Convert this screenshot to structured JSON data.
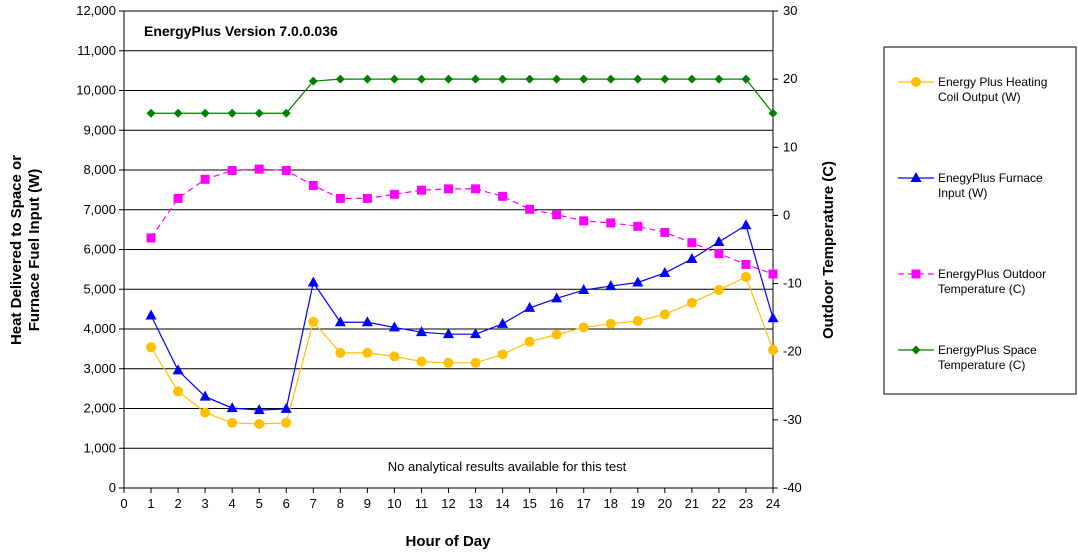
{
  "chart_data": {
    "type": "line",
    "title": "EnergyPlus Version 7.0.0.036",
    "annotation": "No analytical results available for this test",
    "xlabel": "Hour of Day",
    "ylabel": "Heat Delivered to Space or Furnace Fuel Input (W)",
    "ylabel_lines": [
      "Heat Delivered to Space or",
      "Furnace Fuel Input (W)"
    ],
    "y2label": "Outdoor Temperature (C)",
    "xlim": [
      0,
      24
    ],
    "ylim": [
      0,
      12000
    ],
    "y2lim": [
      -40,
      30
    ],
    "x_ticks": [
      "0",
      "1",
      "2",
      "3",
      "4",
      "5",
      "6",
      "7",
      "8",
      "9",
      "10",
      "11",
      "12",
      "13",
      "14",
      "15",
      "16",
      "17",
      "18",
      "19",
      "20",
      "21",
      "22",
      "23",
      "24"
    ],
    "y_ticks": [
      "0",
      "1,000",
      "2,000",
      "3,000",
      "4,000",
      "5,000",
      "6,000",
      "7,000",
      "8,000",
      "9,000",
      "10,000",
      "11,000",
      "12,000"
    ],
    "y2_ticks": [
      "-40",
      "-30",
      "-20",
      "-10",
      "0",
      "10",
      "20",
      "30"
    ],
    "grid": "horizontal",
    "legend_position": "right",
    "x": [
      1,
      2,
      3,
      4,
      5,
      6,
      7,
      8,
      9,
      10,
      11,
      12,
      13,
      14,
      15,
      16,
      17,
      18,
      19,
      20,
      21,
      22,
      23,
      24
    ],
    "series": [
      {
        "name": "Energy Plus Heating Coil Output (W)",
        "legend_lines": [
          "Energy Plus Heating",
          "Coil Output (W)"
        ],
        "axis": "left",
        "color": "#FFC000",
        "marker": "circle",
        "dash": false,
        "values": [
          3540,
          2430,
          1900,
          1640,
          1610,
          1640,
          4180,
          3400,
          3400,
          3310,
          3180,
          3150,
          3150,
          3360,
          3680,
          3860,
          4040,
          4130,
          4200,
          4370,
          4660,
          4980,
          5310,
          3470
        ]
      },
      {
        "name": "EnegyPlus Furnace Input (W)",
        "legend_lines": [
          "EnegyPlus Furnace",
          "Input (W)"
        ],
        "axis": "left",
        "color": "#0000FF",
        "marker": "triangle",
        "dash": false,
        "values": [
          4340,
          2960,
          2300,
          2010,
          1960,
          1990,
          5170,
          4170,
          4170,
          4040,
          3920,
          3870,
          3870,
          4130,
          4530,
          4770,
          4980,
          5080,
          5170,
          5410,
          5760,
          6190,
          6610,
          4270
        ]
      },
      {
        "name": "EnergyPlus Outdoor Temperature (C)",
        "legend_lines": [
          "EnergyPlus Outdoor",
          "Temperature (C)"
        ],
        "axis": "right",
        "color": "#FF00FF",
        "marker": "square",
        "dash": true,
        "values": [
          -3.3,
          2.5,
          5.3,
          6.6,
          6.8,
          6.6,
          4.4,
          2.5,
          2.5,
          3.1,
          3.7,
          3.9,
          3.9,
          2.8,
          0.9,
          0.1,
          -0.8,
          -1.1,
          -1.6,
          -2.5,
          -4.0,
          -5.6,
          -7.2,
          -8.6
        ]
      },
      {
        "name": "EnergyPlus Space Temperature (C)",
        "legend_lines": [
          "EnergyPlus Space",
          "Temperature (C)"
        ],
        "axis": "right",
        "color": "#008000",
        "marker": "diamond",
        "dash": false,
        "values": [
          15,
          15,
          15,
          15,
          15,
          15,
          19.7,
          20,
          20,
          20,
          20,
          20,
          20,
          20,
          20,
          20,
          20,
          20,
          20,
          20,
          20,
          20,
          20,
          15
        ]
      }
    ]
  }
}
